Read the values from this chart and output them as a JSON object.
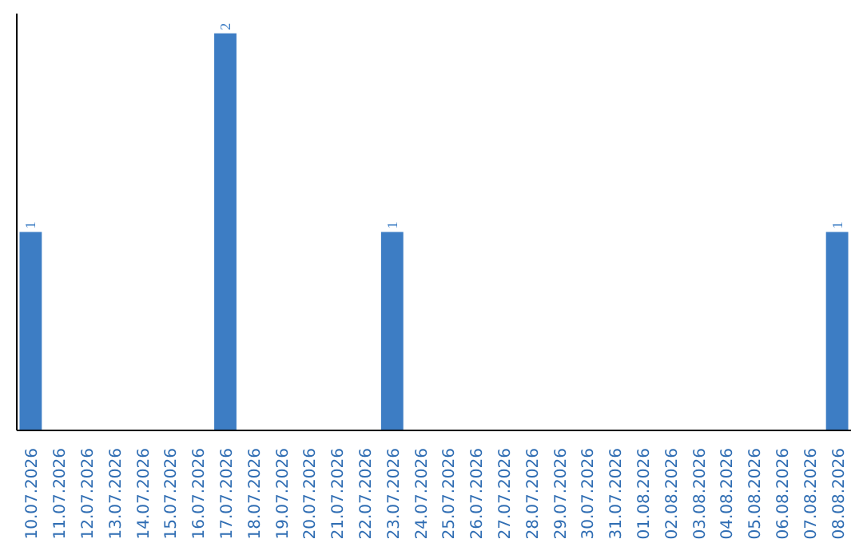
{
  "chart_data": {
    "type": "bar",
    "categories": [
      "10.07.2026",
      "11.07.2026",
      "12.07.2026",
      "13.07.2026",
      "14.07.2026",
      "15.07.2026",
      "16.07.2026",
      "17.07.2026",
      "18.07.2026",
      "19.07.2026",
      "20.07.2026",
      "21.07.2026",
      "22.07.2026",
      "23.07.2026",
      "24.07.2026",
      "25.07.2026",
      "26.07.2026",
      "27.07.2026",
      "28.07.2026",
      "29.07.2026",
      "30.07.2026",
      "31.07.2026",
      "01.08.2026",
      "02.08.2026",
      "03.08.2026",
      "04.08.2026",
      "05.08.2026",
      "06.08.2026",
      "07.08.2026",
      "08.08.2026"
    ],
    "values": [
      1,
      0,
      0,
      0,
      0,
      0,
      0,
      2,
      0,
      0,
      0,
      0,
      0,
      1,
      0,
      0,
      0,
      0,
      0,
      0,
      0,
      0,
      0,
      0,
      0,
      0,
      0,
      0,
      0,
      1
    ],
    "value_labels": [
      "1",
      null,
      null,
      null,
      null,
      null,
      null,
      "2",
      null,
      null,
      null,
      null,
      null,
      "1",
      null,
      null,
      null,
      null,
      null,
      null,
      null,
      null,
      null,
      null,
      null,
      null,
      null,
      null,
      null,
      "1"
    ],
    "color": "#3d7dc4",
    "ylim": [
      0,
      2.1
    ],
    "tick_labels": "x"
  }
}
